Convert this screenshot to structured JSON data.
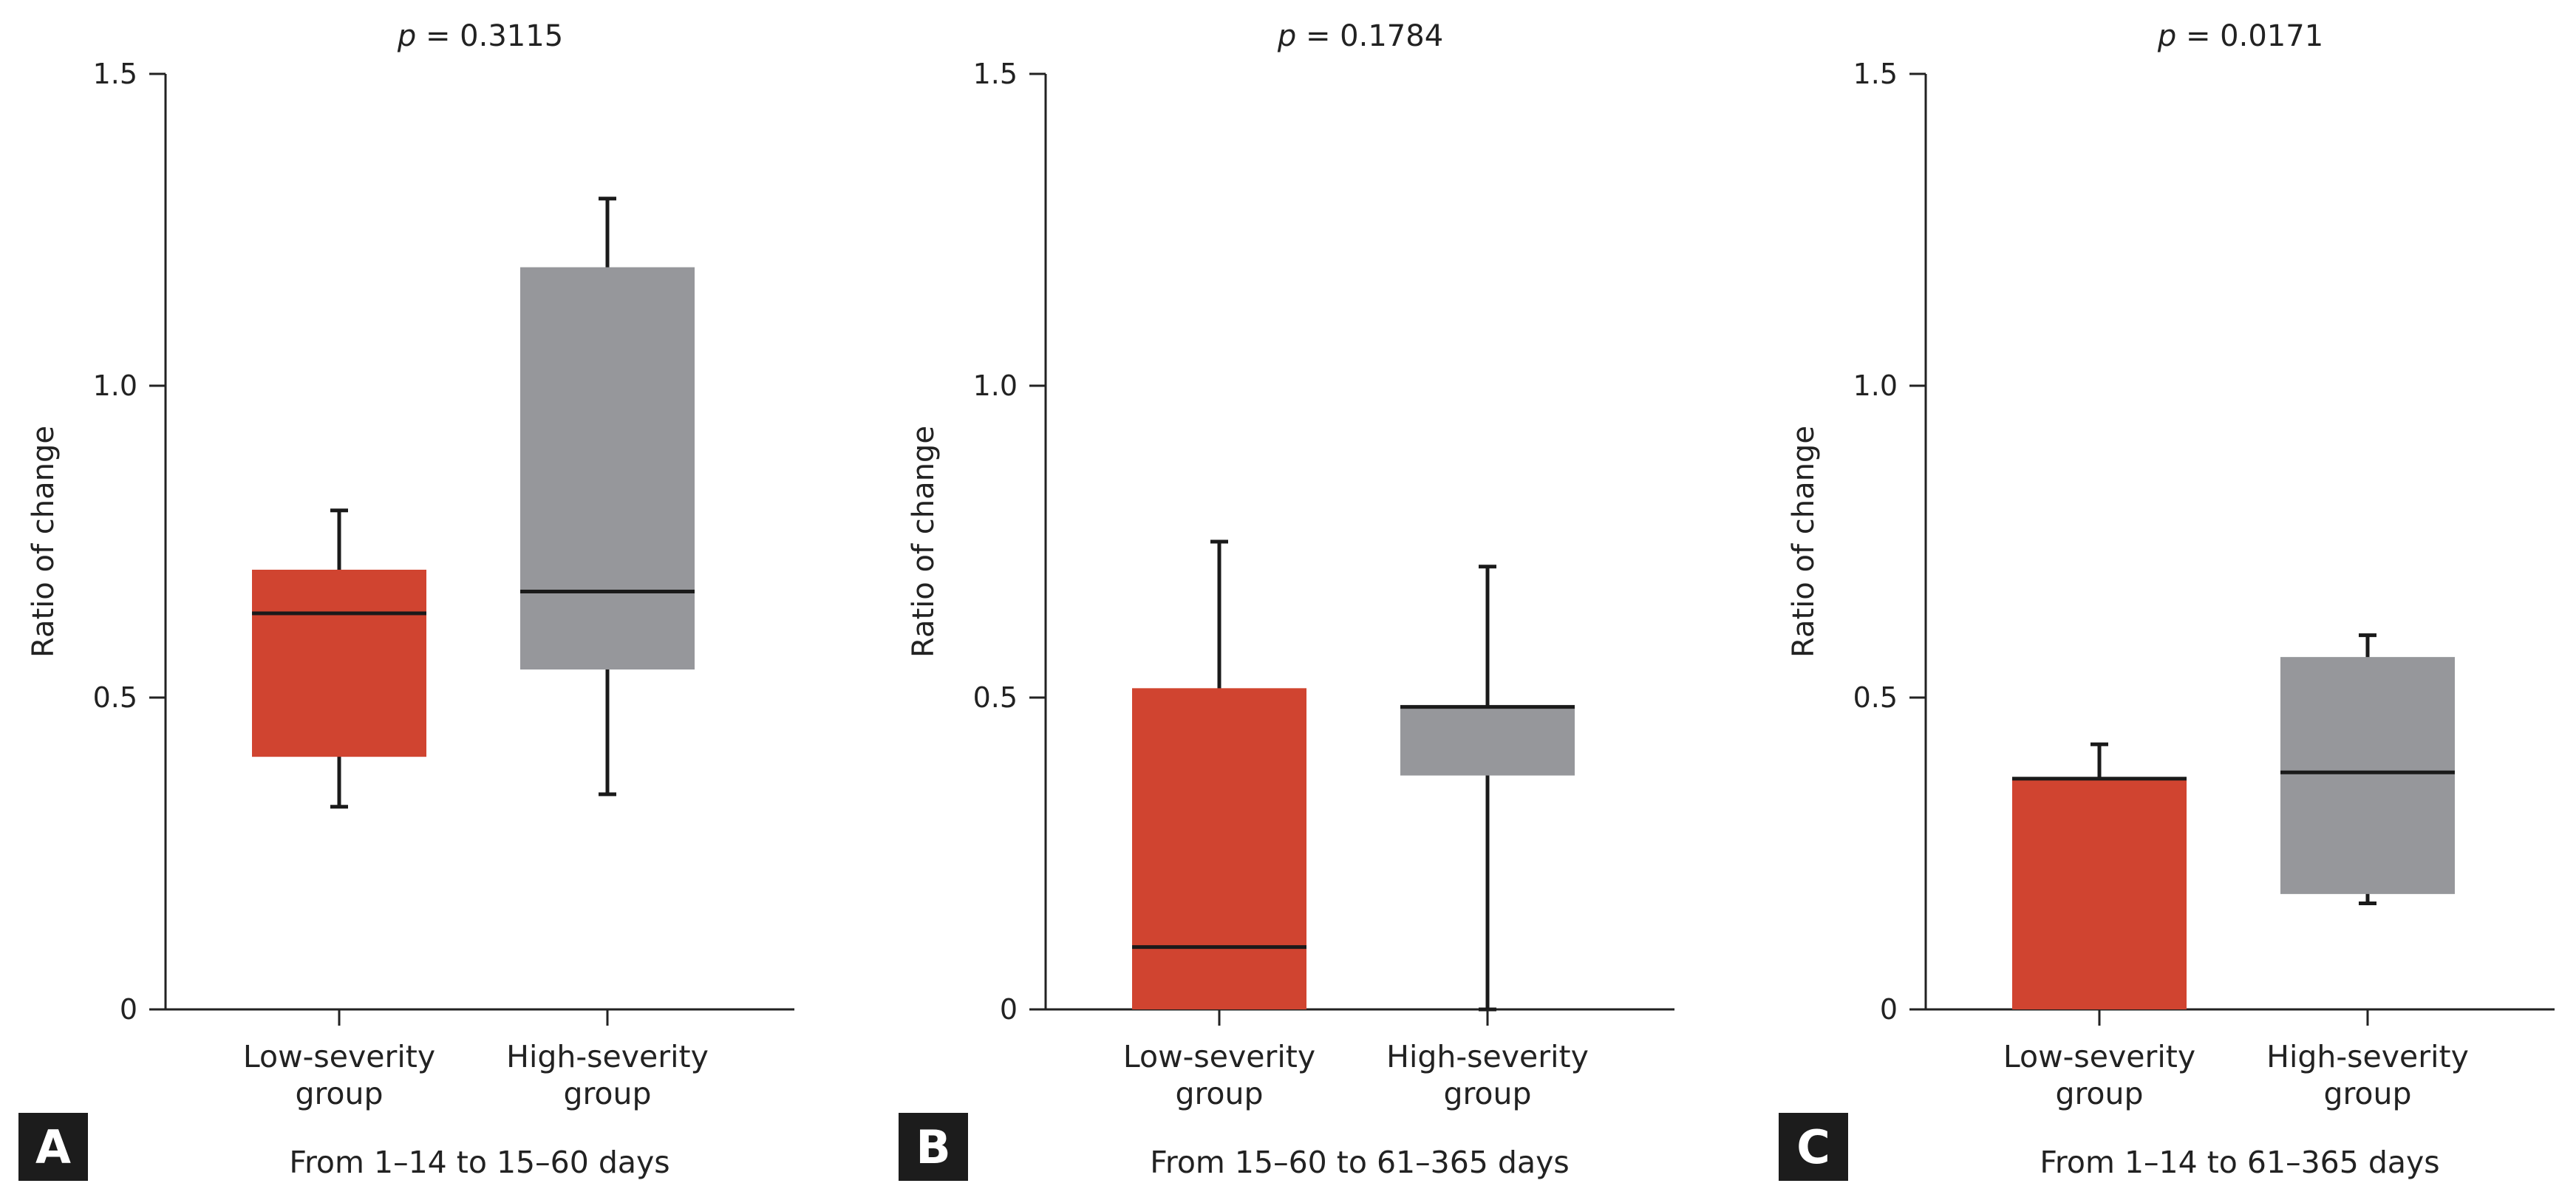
{
  "chart_data": [
    {
      "type": "box",
      "panel_label": "A",
      "p_label": "p",
      "p_value": " = 0.3115",
      "xlabel": "From 1–14 to 15–60 days",
      "ylabel": "Ratio of change",
      "ylim": [
        0,
        1.5
      ],
      "yticks": [
        "0",
        "0.5",
        "1.0",
        "1.5"
      ],
      "grid": false,
      "categories": [
        [
          "Low-severity",
          "group"
        ],
        [
          "High-severity",
          "group"
        ]
      ],
      "boxes": [
        {
          "min": 0.325,
          "q1": 0.405,
          "median": 0.635,
          "q3": 0.705,
          "max": 0.8,
          "color": "#d04430"
        },
        {
          "min": 0.345,
          "q1": 0.545,
          "median": 0.67,
          "q3": 1.19,
          "max": 1.3,
          "color": "#96979b"
        }
      ]
    },
    {
      "type": "box",
      "panel_label": "B",
      "p_label": "p",
      "p_value": " = 0.1784",
      "xlabel": "From 15–60 to 61–365 days",
      "ylabel": "Ratio of change",
      "ylim": [
        0,
        1.5
      ],
      "yticks": [
        "0",
        "0.5",
        "1.0",
        "1.5"
      ],
      "grid": false,
      "categories": [
        [
          "Low-severity",
          "group"
        ],
        [
          "High-severity",
          "group"
        ]
      ],
      "boxes": [
        {
          "min": 0.0,
          "q1": 0.0,
          "median": 0.1,
          "q3": 0.515,
          "max": 0.75,
          "color": "#d04430"
        },
        {
          "min": 0.0,
          "q1": 0.375,
          "median": 0.485,
          "q3": 0.485,
          "max": 0.71,
          "color": "#96979b"
        }
      ]
    },
    {
      "type": "box",
      "panel_label": "C",
      "p_label": "p",
      "p_value": " = 0.0171",
      "xlabel": "From 1–14 to 61–365 days",
      "ylabel": "Ratio of change",
      "ylim": [
        0,
        1.5
      ],
      "yticks": [
        "0",
        "0.5",
        "1.0",
        "1.5"
      ],
      "grid": false,
      "categories": [
        [
          "Low-severity",
          "group"
        ],
        [
          "High-severity",
          "group"
        ]
      ],
      "boxes": [
        {
          "min": 0.0,
          "q1": 0.0,
          "median": 0.37,
          "q3": 0.37,
          "max": 0.425,
          "color": "#d04430"
        },
        {
          "min": 0.17,
          "q1": 0.185,
          "median": 0.38,
          "q3": 0.565,
          "max": 0.6,
          "color": "#96979b"
        }
      ]
    }
  ]
}
